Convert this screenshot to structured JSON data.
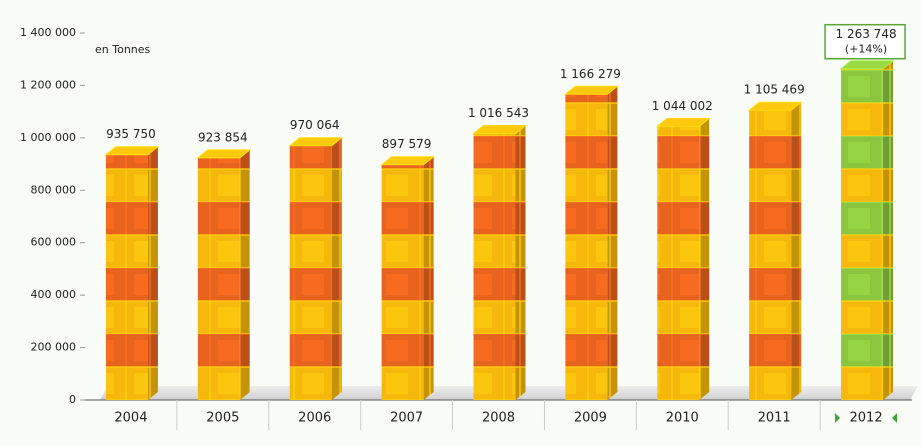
{
  "chart_data": {
    "type": "bar",
    "unit_label": "en Tonnes",
    "categories": [
      "2004",
      "2005",
      "2006",
      "2007",
      "2008",
      "2009",
      "2010",
      "2011",
      "2012"
    ],
    "values": [
      935750,
      923854,
      970064,
      897579,
      1016543,
      1166279,
      1044002,
      1105469,
      1263748
    ],
    "value_labels": [
      "935 750",
      "923 854",
      "970 064",
      "897 579",
      "1 016 543",
      "1 166 279",
      "1 044 002",
      "1 105 469",
      "1 263 748"
    ],
    "annotation": "(+14%)",
    "colors": [
      "#f6b80c",
      "#e8641e"
    ],
    "highlight_color": "#8cc63f",
    "ylim": [
      0,
      1400000
    ],
    "yticks": [
      0,
      {
        "value": 200000,
        "label": "200 000"
      },
      {
        "value": 400000,
        "label": "400 000"
      },
      {
        "value": 600000,
        "label": "600 000"
      },
      {
        "value": 800000,
        "label": "800 000"
      },
      {
        "value": 1000000,
        "label": "1 000 000"
      },
      {
        "value": 1200000,
        "label": "1 200 000"
      },
      {
        "value": 1400000,
        "label": "1 400 000"
      }
    ]
  }
}
